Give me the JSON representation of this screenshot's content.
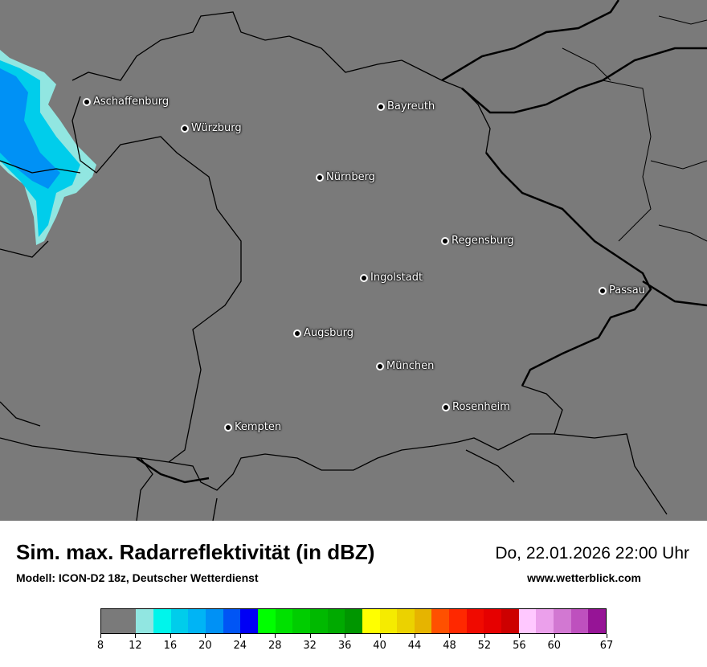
{
  "map": {
    "background_color": "#7a7a7a",
    "cities": [
      {
        "name": "Aschaffenburg"
      },
      {
        "name": "Würzburg"
      },
      {
        "name": "Bayreuth"
      },
      {
        "name": "Nürnberg"
      },
      {
        "name": "Regensburg"
      },
      {
        "name": "Ingolstadt"
      },
      {
        "name": "Passau"
      },
      {
        "name": "Augsburg"
      },
      {
        "name": "München"
      },
      {
        "name": "Rosenheim"
      },
      {
        "name": "Kempten"
      }
    ]
  },
  "footer": {
    "title": "Sim. max. Radarreflektivität (in dBZ)",
    "model": "Modell: ICON-D2 18z, Deutscher Wetterdienst",
    "datetime": "Do, 22.01.2026 22:00 Uhr",
    "website": "www.wetterblick.com"
  },
  "legend": {
    "unit": "dBZ",
    "colors": [
      "#7a7a7a",
      "#91e6e1",
      "#00f5eb",
      "#00cdeb",
      "#00b4f5",
      "#0091f5",
      "#0055f5",
      "#0000f5",
      "#00ff00",
      "#00e100",
      "#00cd00",
      "#00b900",
      "#00aa00",
      "#009600",
      "#ffff00",
      "#f5eb00",
      "#ebd200",
      "#e6b400",
      "#ff5000",
      "#ff2800",
      "#f00a00",
      "#e60000",
      "#cd0000",
      "#ffc8ff",
      "#eba0eb",
      "#d278d2",
      "#be50be",
      "#961496"
    ],
    "ticks": [
      "8",
      "12",
      "16",
      "20",
      "24",
      "28",
      "32",
      "36",
      "40",
      "44",
      "48",
      "52",
      "56",
      "60",
      "67"
    ]
  }
}
